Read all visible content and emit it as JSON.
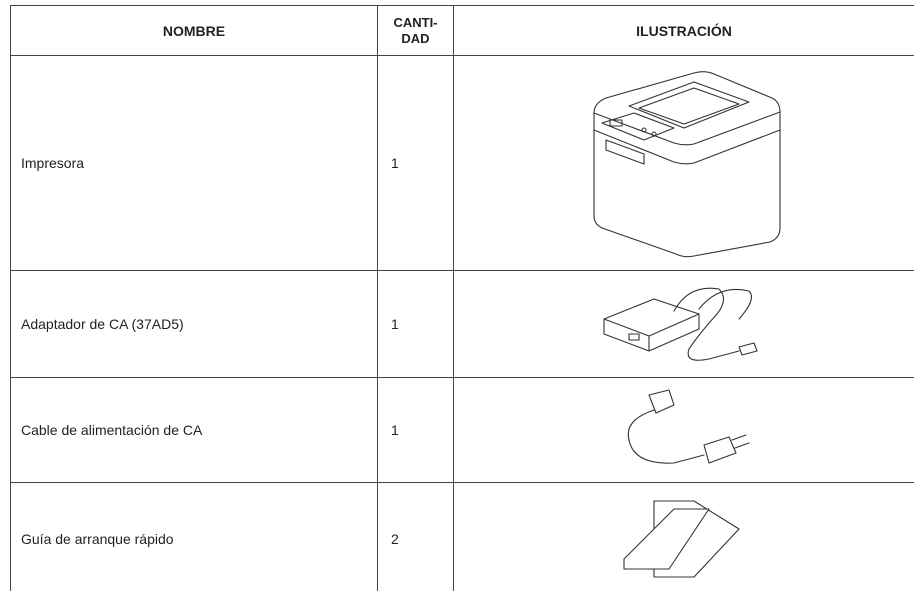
{
  "table": {
    "header": {
      "name": "NOMBRE",
      "quantity": "CANTI-\nDAD",
      "illustration": "ILUSTRACIÓN"
    },
    "rows": [
      {
        "name": "Impresora",
        "quantity": 1
      },
      {
        "name": "Adaptador de CA (37AD5)",
        "quantity": 1
      },
      {
        "name": "Cable de alimentación de CA",
        "quantity": 1
      },
      {
        "name": "Guía de arranque rápido",
        "quantity": 2
      }
    ]
  }
}
